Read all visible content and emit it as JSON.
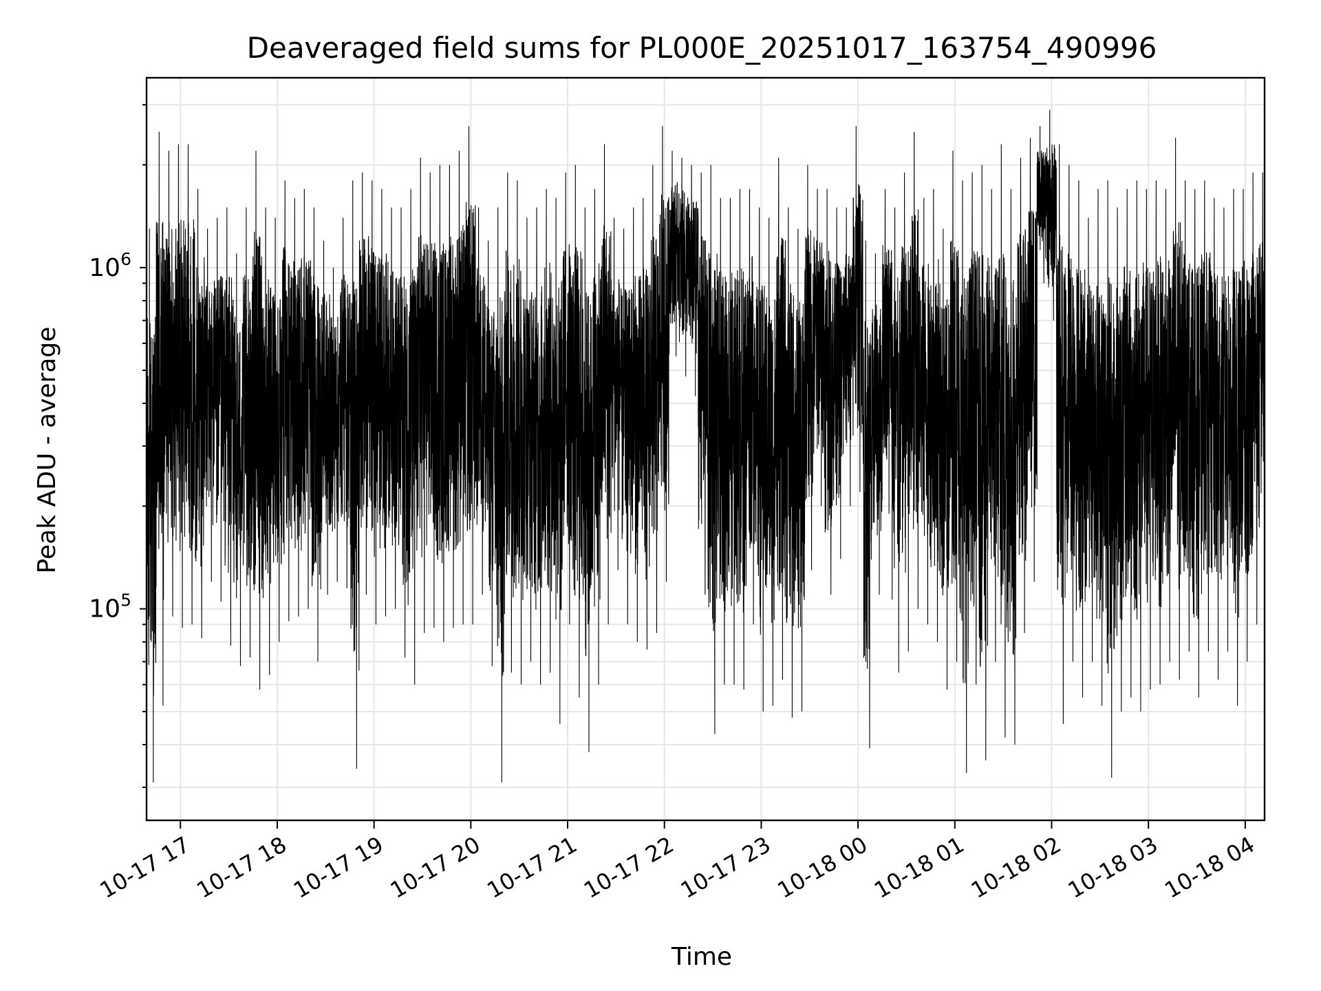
{
  "chart_data": {
    "type": "line",
    "title": "Deaveraged field sums for PL000E_20251017_163754_490996",
    "xlabel": "Time",
    "ylabel": "Peak ADU - average",
    "yscale": "log",
    "ylim": [
      24000,
      3600000
    ],
    "xlim": [
      "2025-10-17 16:39",
      "2025-10-18 04:12"
    ],
    "grid": true,
    "line_color": "#000000",
    "grid_color": "#e6e6e6",
    "y_ticks": [
      {
        "value": 100000,
        "base": "10",
        "exp": "5"
      },
      {
        "value": 1000000,
        "base": "10",
        "exp": "6"
      }
    ],
    "x_ticks": [
      {
        "value": "2025-10-17 17:00",
        "label": "10-17 17"
      },
      {
        "value": "2025-10-17 18:00",
        "label": "10-17 18"
      },
      {
        "value": "2025-10-17 19:00",
        "label": "10-17 19"
      },
      {
        "value": "2025-10-17 20:00",
        "label": "10-17 20"
      },
      {
        "value": "2025-10-17 21:00",
        "label": "10-17 21"
      },
      {
        "value": "2025-10-17 22:00",
        "label": "10-17 22"
      },
      {
        "value": "2025-10-17 23:00",
        "label": "10-17 23"
      },
      {
        "value": "2025-10-18 00:00",
        "label": "10-18 00"
      },
      {
        "value": "2025-10-18 01:00",
        "label": "10-18 01"
      },
      {
        "value": "2025-10-18 02:00",
        "label": "10-18 02"
      },
      {
        "value": "2025-10-18 03:00",
        "label": "10-18 03"
      },
      {
        "value": "2025-10-18 04:00",
        "label": "10-18 04"
      }
    ],
    "series": [
      {
        "x": [
          "2025-10-17 16:39",
          "2025-10-17 16:45",
          "2025-10-17 16:51",
          "2025-10-17 16:57",
          "2025-10-17 17:03",
          "2025-10-17 17:09",
          "2025-10-17 17:15",
          "2025-10-17 17:21",
          "2025-10-17 17:27",
          "2025-10-17 17:33",
          "2025-10-17 17:39",
          "2025-10-17 17:45",
          "2025-10-17 17:51",
          "2025-10-17 17:57",
          "2025-10-17 18:03",
          "2025-10-17 18:09",
          "2025-10-17 18:15",
          "2025-10-17 18:21",
          "2025-10-17 18:27",
          "2025-10-17 18:33",
          "2025-10-17 18:39",
          "2025-10-17 18:45",
          "2025-10-17 18:51",
          "2025-10-17 18:57",
          "2025-10-17 19:03",
          "2025-10-17 19:09",
          "2025-10-17 19:15",
          "2025-10-17 19:21",
          "2025-10-17 19:27",
          "2025-10-17 19:33",
          "2025-10-17 19:39",
          "2025-10-17 19:45",
          "2025-10-17 19:51",
          "2025-10-17 19:57",
          "2025-10-17 20:03",
          "2025-10-17 20:09",
          "2025-10-17 20:15",
          "2025-10-17 20:21",
          "2025-10-17 20:27",
          "2025-10-17 20:33",
          "2025-10-17 20:39",
          "2025-10-17 20:45",
          "2025-10-17 20:51",
          "2025-10-17 20:57",
          "2025-10-17 21:03",
          "2025-10-17 21:09",
          "2025-10-17 21:15",
          "2025-10-17 21:21",
          "2025-10-17 21:27",
          "2025-10-17 21:33",
          "2025-10-17 21:39",
          "2025-10-17 21:45",
          "2025-10-17 21:51",
          "2025-10-17 21:57",
          "2025-10-17 22:03",
          "2025-10-17 22:09",
          "2025-10-17 22:15",
          "2025-10-17 22:21",
          "2025-10-17 22:27",
          "2025-10-17 22:33",
          "2025-10-17 22:39",
          "2025-10-17 22:45",
          "2025-10-17 22:51",
          "2025-10-17 22:57",
          "2025-10-17 23:03",
          "2025-10-17 23:09",
          "2025-10-17 23:15",
          "2025-10-17 23:21",
          "2025-10-17 23:27",
          "2025-10-17 23:33",
          "2025-10-17 23:39",
          "2025-10-17 23:45",
          "2025-10-17 23:51",
          "2025-10-17 23:57",
          "2025-10-18 00:03",
          "2025-10-18 00:09",
          "2025-10-18 00:15",
          "2025-10-18 00:21",
          "2025-10-18 00:27",
          "2025-10-18 00:33",
          "2025-10-18 00:39",
          "2025-10-18 00:45",
          "2025-10-18 00:51",
          "2025-10-18 00:57",
          "2025-10-18 01:03",
          "2025-10-18 01:09",
          "2025-10-18 01:15",
          "2025-10-18 01:21",
          "2025-10-18 01:27",
          "2025-10-18 01:33",
          "2025-10-18 01:39",
          "2025-10-18 01:45",
          "2025-10-18 01:51",
          "2025-10-18 01:57",
          "2025-10-18 02:03",
          "2025-10-18 02:09",
          "2025-10-18 02:15",
          "2025-10-18 02:21",
          "2025-10-18 02:27",
          "2025-10-18 02:33",
          "2025-10-18 02:39",
          "2025-10-18 02:45",
          "2025-10-18 02:51",
          "2025-10-18 02:57",
          "2025-10-18 03:03",
          "2025-10-18 03:09",
          "2025-10-18 03:15",
          "2025-10-18 03:21",
          "2025-10-18 03:27",
          "2025-10-18 03:33",
          "2025-10-18 03:39",
          "2025-10-18 03:45",
          "2025-10-18 03:51",
          "2025-10-18 03:57",
          "2025-10-18 04:03",
          "2025-10-18 04:09"
        ],
        "low": [
          31000,
          52000,
          95000,
          88000,
          90000,
          82000,
          120000,
          105000,
          78000,
          68000,
          72000,
          58000,
          64000,
          80000,
          92000,
          95000,
          100000,
          70000,
          110000,
          120000,
          115000,
          34000,
          110000,
          90000,
          95000,
          100000,
          72000,
          60000,
          85000,
          88000,
          80000,
          88000,
          90000,
          90000,
          110000,
          68000,
          31000,
          65000,
          60000,
          70000,
          60000,
          65000,
          46000,
          90000,
          55000,
          38000,
          60000,
          90000,
          130000,
          90000,
          80000,
          76000,
          85000,
          120000,
          550000,
          480000,
          420000,
          110000,
          43000,
          60000,
          60000,
          58000,
          90000,
          50000,
          52000,
          62000,
          48000,
          50000,
          130000,
          200000,
          110000,
          140000,
          200000,
          220000,
          39000,
          110000,
          190000,
          65000,
          75000,
          100000,
          90000,
          80000,
          58000,
          70000,
          33000,
          60000,
          36000,
          70000,
          42000,
          40000,
          85000,
          120000,
          900000,
          700000,
          46000,
          70000,
          55000,
          70000,
          52000,
          32000,
          50000,
          55000,
          50000,
          58000,
          60000,
          70000,
          62000,
          75000,
          55000,
          75000,
          62000,
          75000,
          52000,
          70000,
          90000,
          120000
        ],
        "high": [
          1300000,
          2500000,
          2200000,
          2300000,
          2300000,
          1700000,
          1300000,
          1400000,
          1500000,
          1100000,
          1500000,
          2200000,
          1500000,
          1400000,
          1800000,
          1600000,
          1700000,
          1500000,
          1200000,
          1000000,
          1400000,
          1800000,
          1900000,
          1800000,
          1700000,
          1500000,
          1500000,
          1700000,
          2100000,
          1900000,
          2000000,
          2000000,
          2200000,
          2600000,
          1500000,
          1200000,
          1500000,
          1900000,
          1800000,
          1400000,
          1500000,
          1700000,
          1600000,
          1900000,
          2000000,
          1500000,
          1700000,
          2300000,
          1400000,
          1300000,
          1500000,
          1600000,
          2000000,
          2600000,
          2200000,
          2100000,
          2000000,
          1900000,
          2000000,
          1600000,
          1600000,
          1700000,
          1700000,
          1500000,
          1400000,
          2100000,
          1500000,
          1300000,
          2000000,
          1700000,
          1700000,
          1500000,
          1500000,
          2600000,
          1200000,
          1100000,
          1700000,
          1500000,
          1900000,
          2500000,
          1600000,
          1700000,
          1300000,
          2200000,
          1800000,
          1900000,
          2000000,
          1700000,
          2300000,
          1700000,
          2100000,
          2400000,
          2600000,
          2900000,
          2300000,
          2000000,
          1800000,
          1400000,
          1700000,
          1800000,
          1500000,
          1700000,
          1800000,
          1700000,
          1800000,
          1700000,
          2400000,
          1800000,
          1700000,
          1800000,
          1600000,
          1500000,
          1700000,
          1700000,
          1900000,
          1900000
        ]
      }
    ]
  }
}
